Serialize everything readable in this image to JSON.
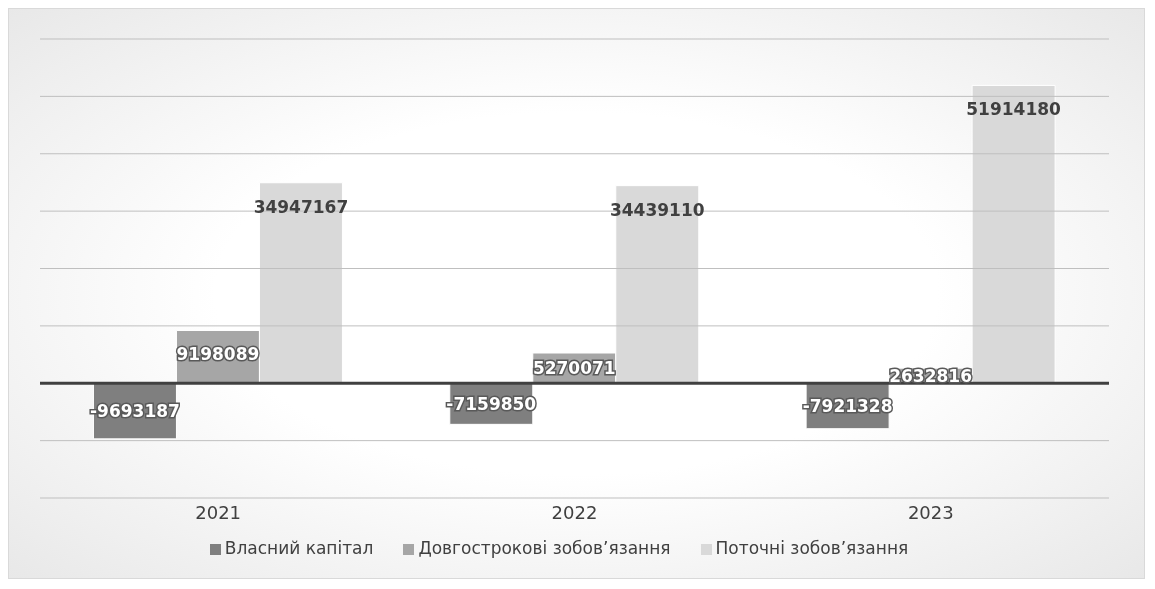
{
  "chart_data": {
    "type": "bar",
    "categories": [
      "2021",
      "2022",
      "2023"
    ],
    "series": [
      {
        "name": "Власний  капітал",
        "color": "#7f7f7f",
        "values": [
          -9693187,
          -7159850,
          -7921328
        ]
      },
      {
        "name": "Довгострокові зобов’язання",
        "color": "#a6a6a6",
        "values": [
          9198089,
          5270071,
          2632816
        ]
      },
      {
        "name": "Поточні зобов’язання",
        "color": "#d9d9d9",
        "values": [
          34947167,
          34439110,
          51914180
        ]
      }
    ],
    "ylim": [
      -20000000,
      60000000
    ],
    "yticks": [
      {
        "value": -20000000,
        "label": null
      },
      {
        "value": -10000000,
        "label": null
      },
      {
        "value": 0,
        "label": null
      },
      {
        "value": 10000000,
        "label": null
      },
      {
        "value": 20000000,
        "label": null
      },
      {
        "value": 30000000,
        "label": null
      },
      {
        "value": 40000000,
        "label": null
      },
      {
        "value": 50000000,
        "label": null
      },
      {
        "value": 60000000,
        "label": null
      }
    ],
    "grid": "y",
    "legend": "bottom",
    "data_labels": true,
    "tick_labels": "x"
  }
}
